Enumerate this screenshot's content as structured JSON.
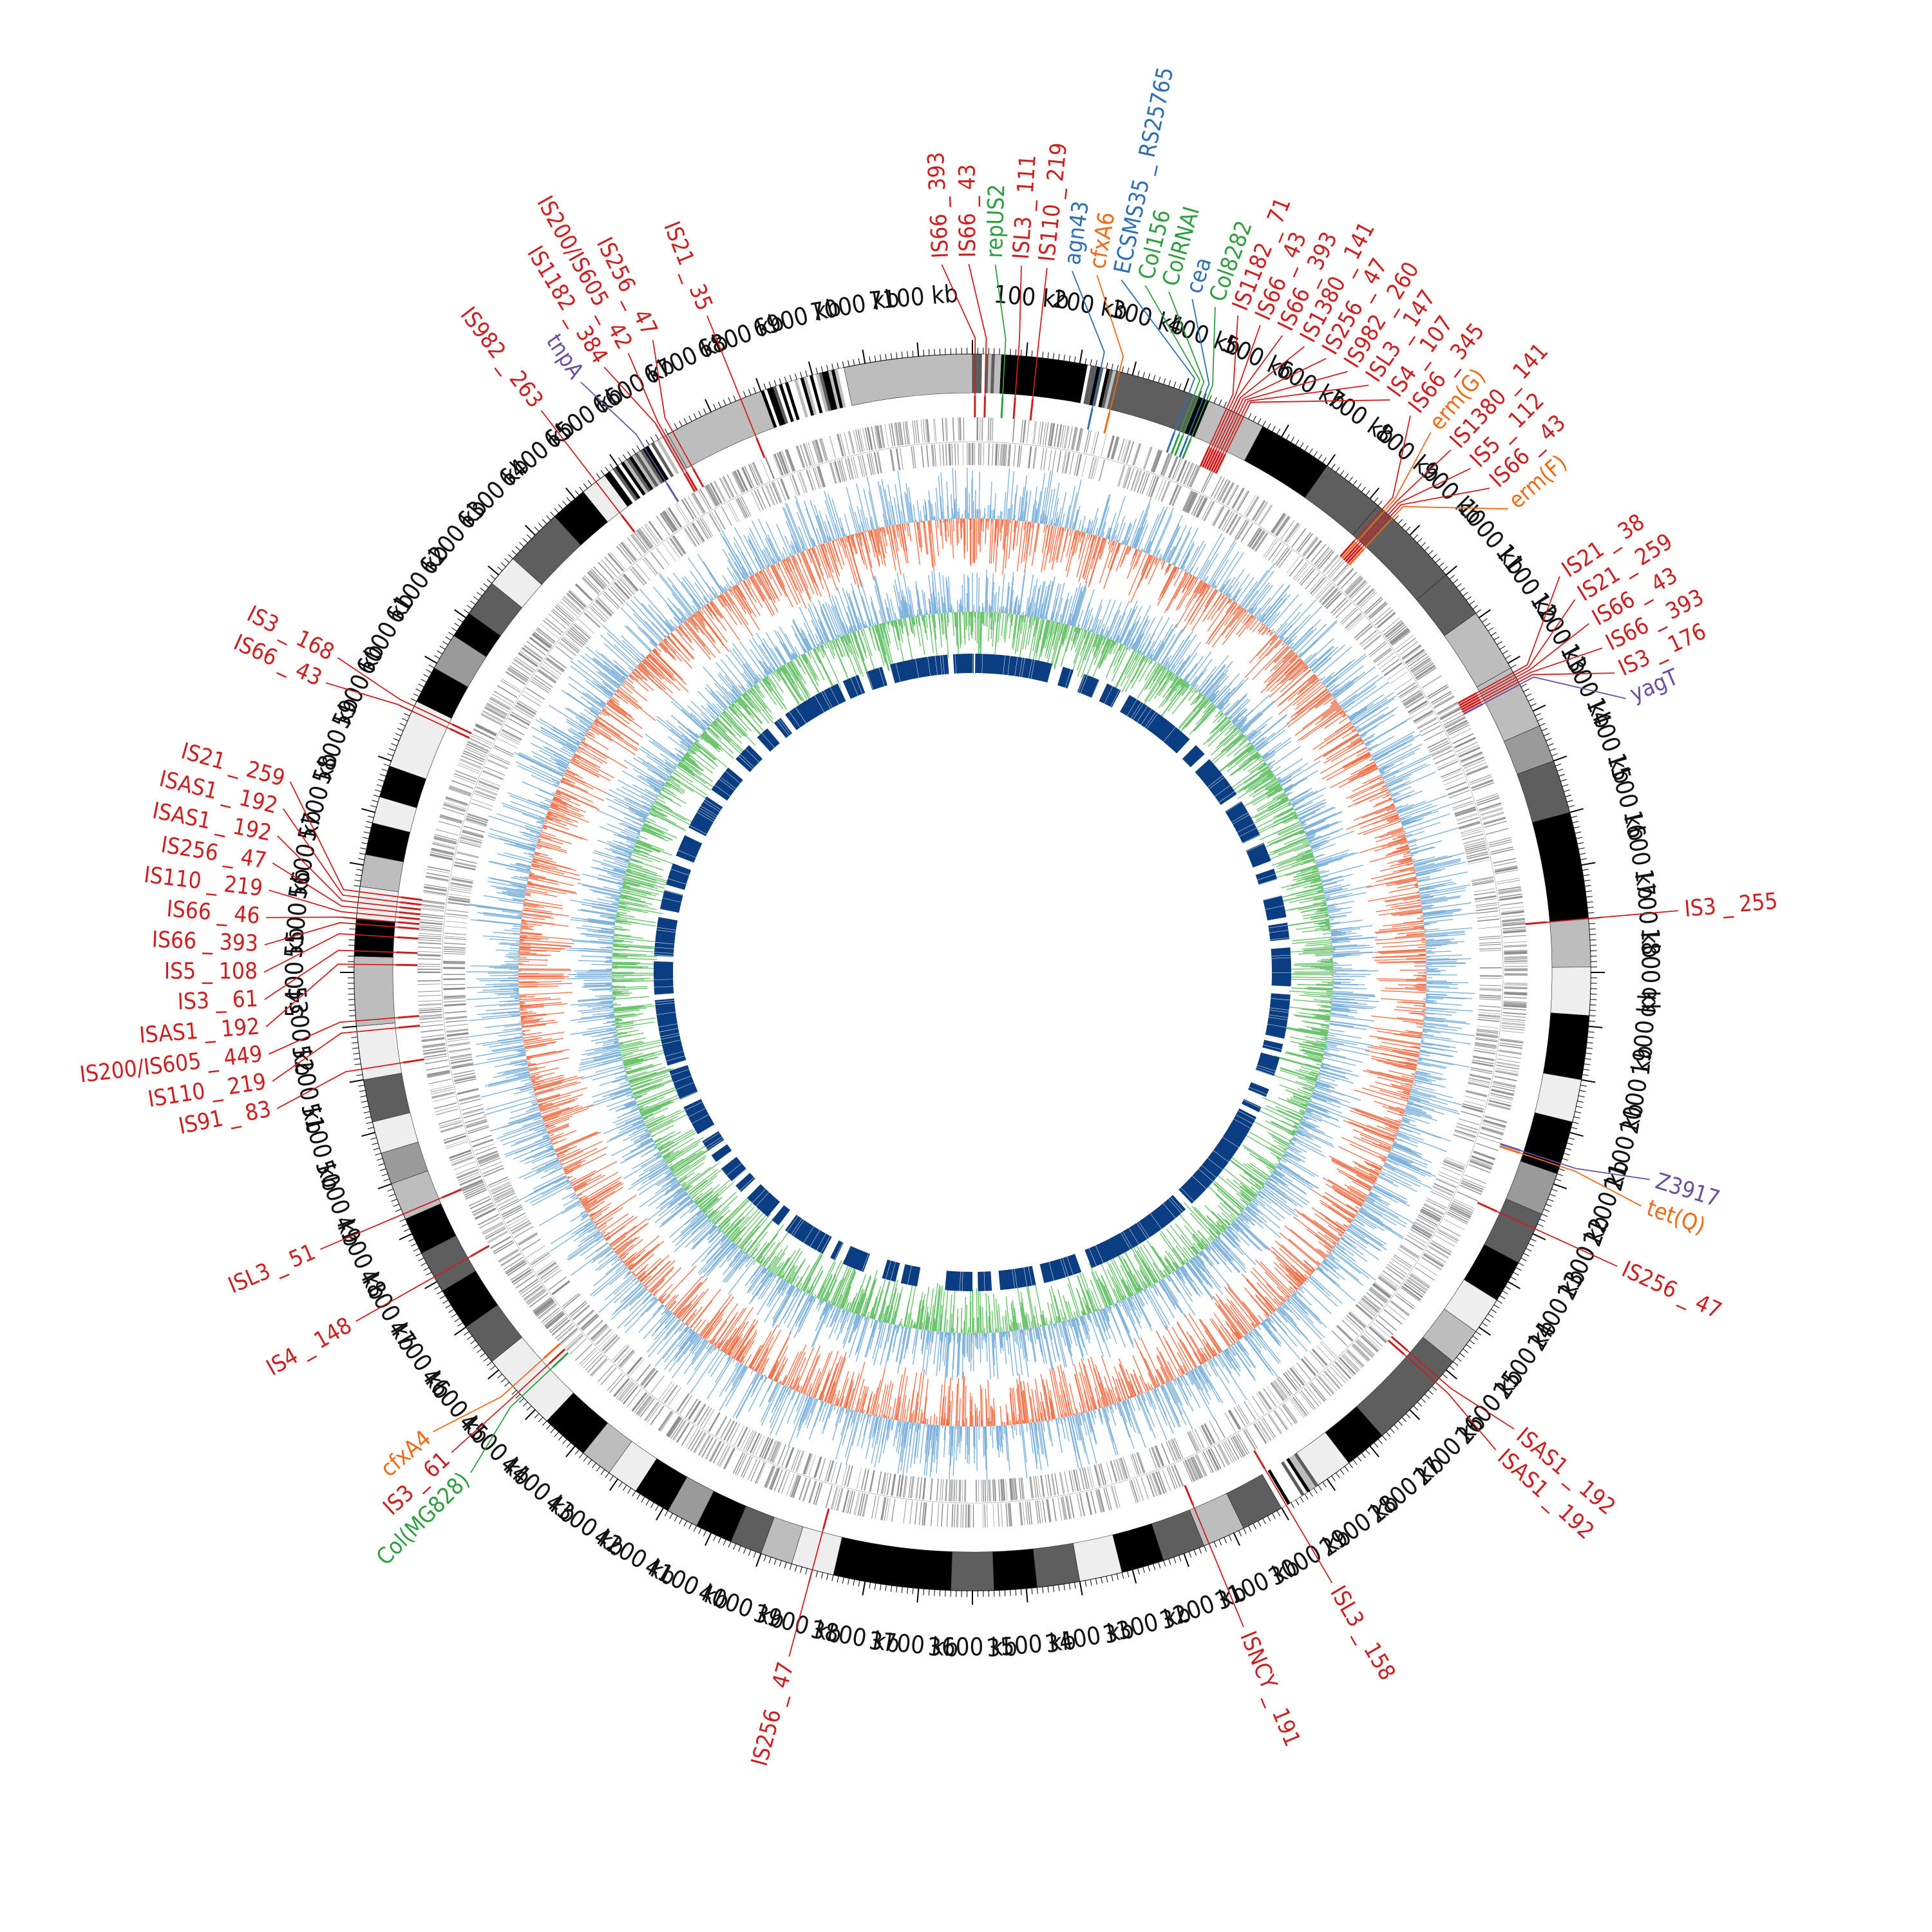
{
  "genome": {
    "length_kb": 7200,
    "major_tick_step_kb": 100,
    "minor_tick_step_kb": 10,
    "tick_unit": "kb"
  },
  "colors": {
    "ring_black": "#000000",
    "ring_dark": "#5e5e5e",
    "ring_mid": "#9a9a9a",
    "ring_light": "#bdbdbd",
    "ring_pale": "#eeeeee",
    "gene_gray": "#8f8f8f",
    "gc_high": "#f0754f",
    "gc_low": "#7fb3dc",
    "skew_pos": "#6cc46e",
    "skew_neg": "#7fb3dc",
    "homology_block": "#0b3d82",
    "is_element": "#cc1f1f",
    "resistance_gene": "#ef6a12",
    "plasmid_replicon": "#2e9f3f",
    "virulence_gene": "#2d6fb3",
    "other_gene": "#6a4fa0"
  },
  "contigs": [
    {
      "start": 0,
      "end": 18,
      "shade": "dark"
    },
    {
      "start": 18,
      "end": 60,
      "shade": "mixed"
    },
    {
      "start": 60,
      "end": 120,
      "shade": "black"
    },
    {
      "start": 120,
      "end": 215,
      "shade": "black"
    },
    {
      "start": 215,
      "end": 275,
      "shade": "mixed"
    },
    {
      "start": 275,
      "end": 430,
      "shade": "dark"
    },
    {
      "start": 430,
      "end": 450,
      "shade": "mixed"
    },
    {
      "start": 450,
      "end": 560,
      "shade": "light"
    },
    {
      "start": 560,
      "end": 700,
      "shade": "black"
    },
    {
      "start": 700,
      "end": 820,
      "shade": "dark"
    },
    {
      "start": 820,
      "end": 1000,
      "shade": "dark"
    },
    {
      "start": 1000,
      "end": 1090,
      "shade": "dark"
    },
    {
      "start": 1090,
      "end": 1210,
      "shade": "light"
    },
    {
      "start": 1210,
      "end": 1330,
      "shade": "light"
    },
    {
      "start": 1330,
      "end": 1400,
      "shade": "mid"
    },
    {
      "start": 1400,
      "end": 1500,
      "shade": "dark"
    },
    {
      "start": 1500,
      "end": 1700,
      "shade": "black"
    },
    {
      "start": 1700,
      "end": 1790,
      "shade": "light"
    },
    {
      "start": 1790,
      "end": 1880,
      "shade": "pale"
    },
    {
      "start": 1880,
      "end": 2000,
      "shade": "black"
    },
    {
      "start": 2000,
      "end": 2080,
      "shade": "pale"
    },
    {
      "start": 2080,
      "end": 2180,
      "shade": "black"
    },
    {
      "start": 2180,
      "end": 2260,
      "shade": "mid"
    },
    {
      "start": 2260,
      "end": 2360,
      "shade": "dark"
    },
    {
      "start": 2360,
      "end": 2440,
      "shade": "black"
    },
    {
      "start": 2440,
      "end": 2510,
      "shade": "pale"
    },
    {
      "start": 2510,
      "end": 2580,
      "shade": "light"
    },
    {
      "start": 2580,
      "end": 2770,
      "shade": "dark"
    },
    {
      "start": 2770,
      "end": 2850,
      "shade": "black"
    },
    {
      "start": 2850,
      "end": 2920,
      "shade": "pale"
    },
    {
      "start": 2920,
      "end": 3000,
      "shade": "mixed"
    },
    {
      "start": 3000,
      "end": 3080,
      "shade": "dark"
    },
    {
      "start": 3080,
      "end": 3160,
      "shade": "light"
    },
    {
      "start": 3160,
      "end": 3240,
      "shade": "dark"
    },
    {
      "start": 3240,
      "end": 3320,
      "shade": "black"
    },
    {
      "start": 3320,
      "end": 3400,
      "shade": "pale"
    },
    {
      "start": 3400,
      "end": 3480,
      "shade": "dark"
    },
    {
      "start": 3480,
      "end": 3560,
      "shade": "black"
    },
    {
      "start": 3560,
      "end": 3640,
      "shade": "dark"
    },
    {
      "start": 3640,
      "end": 3860,
      "shade": "black"
    },
    {
      "start": 3860,
      "end": 3940,
      "shade": "pale"
    },
    {
      "start": 3940,
      "end": 4000,
      "shade": "light"
    },
    {
      "start": 4000,
      "end": 4060,
      "shade": "dark"
    },
    {
      "start": 4060,
      "end": 4130,
      "shade": "black"
    },
    {
      "start": 4130,
      "end": 4190,
      "shade": "mid"
    },
    {
      "start": 4190,
      "end": 4260,
      "shade": "black"
    },
    {
      "start": 4260,
      "end": 4320,
      "shade": "pale"
    },
    {
      "start": 4320,
      "end": 4380,
      "shade": "light"
    },
    {
      "start": 4380,
      "end": 4470,
      "shade": "black"
    },
    {
      "start": 4470,
      "end": 4620,
      "shade": "pale"
    },
    {
      "start": 4620,
      "end": 4700,
      "shade": "dark"
    },
    {
      "start": 4700,
      "end": 4780,
      "shade": "black"
    },
    {
      "start": 4780,
      "end": 4860,
      "shade": "dark"
    },
    {
      "start": 4860,
      "end": 4930,
      "shade": "black"
    },
    {
      "start": 4930,
      "end": 5000,
      "shade": "light"
    },
    {
      "start": 5000,
      "end": 5060,
      "shade": "mid"
    },
    {
      "start": 5060,
      "end": 5120,
      "shade": "pale"
    },
    {
      "start": 5120,
      "end": 5200,
      "shade": "dark"
    },
    {
      "start": 5200,
      "end": 5300,
      "shade": "pale"
    },
    {
      "start": 5300,
      "end": 5430,
      "shade": "light"
    },
    {
      "start": 5430,
      "end": 5500,
      "shade": "black"
    },
    {
      "start": 5500,
      "end": 5560,
      "shade": "pale"
    },
    {
      "start": 5560,
      "end": 5620,
      "shade": "light"
    },
    {
      "start": 5620,
      "end": 5680,
      "shade": "black"
    },
    {
      "start": 5680,
      "end": 5730,
      "shade": "pale"
    },
    {
      "start": 5730,
      "end": 5790,
      "shade": "black"
    },
    {
      "start": 5790,
      "end": 5920,
      "shade": "pale"
    },
    {
      "start": 5920,
      "end": 5990,
      "shade": "black"
    },
    {
      "start": 5990,
      "end": 6060,
      "shade": "mid"
    },
    {
      "start": 6060,
      "end": 6110,
      "shade": "black"
    },
    {
      "start": 6110,
      "end": 6180,
      "shade": "dark"
    },
    {
      "start": 6180,
      "end": 6240,
      "shade": "pale"
    },
    {
      "start": 6240,
      "end": 6350,
      "shade": "dark"
    },
    {
      "start": 6350,
      "end": 6420,
      "shade": "black"
    },
    {
      "start": 6420,
      "end": 6470,
      "shade": "pale"
    },
    {
      "start": 6470,
      "end": 6520,
      "shade": "mixed"
    },
    {
      "start": 6520,
      "end": 6610,
      "shade": "mixed"
    },
    {
      "start": 6610,
      "end": 6800,
      "shade": "light"
    },
    {
      "start": 6800,
      "end": 6960,
      "shade": "mixed"
    },
    {
      "start": 6960,
      "end": 7200,
      "shade": "light"
    }
  ],
  "homology_blocks": [
    [
      6480,
      6700
    ],
    [
      6720,
      6780
    ],
    [
      6810,
      6870
    ],
    [
      6900,
      7110
    ],
    [
      7130,
      7200
    ],
    [
      0,
      5
    ],
    [
      10,
      290
    ],
    [
      330,
      370
    ],
    [
      410,
      470
    ],
    [
      500,
      555
    ],
    [
      590,
      860
    ],
    [
      890,
      935
    ],
    [
      960,
      1120
    ],
    [
      1150,
      1290
    ],
    [
      1320,
      1390
    ],
    [
      1420,
      1460
    ],
    [
      1520,
      1600
    ],
    [
      1620,
      1680
    ],
    [
      1710,
      1850
    ],
    [
      1880,
      2040
    ],
    [
      2060,
      2090
    ],
    [
      2110,
      2180
    ],
    [
      2230,
      2260
    ],
    [
      2300,
      2320
    ],
    [
      2340,
      2730
    ],
    [
      2760,
      3160
    ],
    [
      3200,
      3340
    ],
    [
      3370,
      3500
    ],
    [
      3530,
      3580
    ],
    [
      3600,
      3700
    ],
    [
      3800,
      3860
    ],
    [
      3880,
      3930
    ],
    [
      4000,
      4080
    ],
    [
      4110,
      4130
    ],
    [
      4160,
      4320
    ],
    [
      4350,
      4380
    ],
    [
      4400,
      4500
    ],
    [
      4530,
      4560
    ],
    [
      4580,
      4640
    ],
    [
      4670,
      4700
    ],
    [
      4720,
      4760
    ],
    [
      4790,
      4900
    ],
    [
      4930,
      5040
    ],
    [
      5060,
      5300
    ],
    [
      5320,
      5440
    ],
    [
      5460,
      5600
    ],
    [
      5630,
      5700
    ],
    [
      5720,
      5800
    ],
    [
      5830,
      5910
    ],
    [
      5940,
      6070
    ],
    [
      6100,
      6200
    ],
    [
      6240,
      6310
    ],
    [
      6350,
      6400
    ],
    [
      6430,
      6460
    ]
  ],
  "features": [
    {
      "label": "IS66 _ 393",
      "pos": 5,
      "type": "is"
    },
    {
      "label": "IS66 _ 43",
      "pos": 25,
      "type": "is"
    },
    {
      "label": "repUS2",
      "pos": 60,
      "type": "plasmid"
    },
    {
      "label": "ISL3 _ 111",
      "pos": 85,
      "type": "is"
    },
    {
      "label": "IS110 _ 219",
      "pos": 120,
      "type": "is"
    },
    {
      "label": "agn43",
      "pos": 240,
      "type": "virulence"
    },
    {
      "label": "cfxA6",
      "pos": 275,
      "type": "resistance"
    },
    {
      "label": "ECSMS35 _ RS25765",
      "pos": 410,
      "type": "virulence"
    },
    {
      "label": "Col156",
      "pos": 420,
      "type": "plasmid"
    },
    {
      "label": "ColRNAI",
      "pos": 428,
      "type": "plasmid"
    },
    {
      "label": "cea",
      "pos": 438,
      "type": "virulence"
    },
    {
      "label": "Col8282",
      "pos": 445,
      "type": "plasmid"
    },
    {
      "label": "IS1182 _ 71",
      "pos": 485,
      "type": "is"
    },
    {
      "label": "IS66 _ 43",
      "pos": 490,
      "type": "is"
    },
    {
      "label": "IS66 _ 393",
      "pos": 495,
      "type": "is"
    },
    {
      "label": "IS1380 _ 141",
      "pos": 500,
      "type": "is"
    },
    {
      "label": "IS256 _ 47",
      "pos": 505,
      "type": "is"
    },
    {
      "label": "IS982 _ 260",
      "pos": 510,
      "type": "is"
    },
    {
      "label": "ISL3 _ 147",
      "pos": 515,
      "type": "is"
    },
    {
      "label": "IS4 _ 107",
      "pos": 520,
      "type": "is"
    },
    {
      "label": "IS66 _ 345",
      "pos": 830,
      "type": "is"
    },
    {
      "label": "erm(G)",
      "pos": 835,
      "type": "resistance"
    },
    {
      "label": "IS1380 _ 141",
      "pos": 840,
      "type": "is"
    },
    {
      "label": "IS5 _ 112",
      "pos": 845,
      "type": "is"
    },
    {
      "label": "IS66 _ 43",
      "pos": 850,
      "type": "is"
    },
    {
      "label": "erm(F)",
      "pos": 855,
      "type": "resistance"
    },
    {
      "label": "IS21 _ 38",
      "pos": 1220,
      "type": "is"
    },
    {
      "label": "IS21 _ 259",
      "pos": 1225,
      "type": "is"
    },
    {
      "label": "IS66 _ 43",
      "pos": 1230,
      "type": "is"
    },
    {
      "label": "IS66 _ 393",
      "pos": 1235,
      "type": "is"
    },
    {
      "label": "IS3 _ 176",
      "pos": 1240,
      "type": "is"
    },
    {
      "label": "yagT",
      "pos": 1245,
      "type": "other"
    },
    {
      "label": "IS3 _ 255",
      "pos": 1700,
      "type": "is"
    },
    {
      "label": "Z3917",
      "pos": 2160,
      "type": "other"
    },
    {
      "label": "tet(Q)",
      "pos": 2165,
      "type": "resistance"
    },
    {
      "label": "IS256 _ 47",
      "pos": 2290,
      "type": "is"
    },
    {
      "label": "ISAS1 _ 192",
      "pos": 2620,
      "type": "is"
    },
    {
      "label": "ISAS1 _ 192",
      "pos": 2630,
      "type": "is"
    },
    {
      "label": "ISL3 _ 158",
      "pos": 2990,
      "type": "is"
    },
    {
      "label": "ISNCY _ 191",
      "pos": 3150,
      "type": "is"
    },
    {
      "label": "IS256 _ 47",
      "pos": 3900,
      "type": "is"
    },
    {
      "label": "Col(MG828)",
      "pos": 4535,
      "type": "plasmid"
    },
    {
      "label": "IS3 _ 61",
      "pos": 4545,
      "type": "is"
    },
    {
      "label": "cfxA4",
      "pos": 4560,
      "type": "resistance"
    },
    {
      "label": "IS4 _ 148",
      "pos": 4810,
      "type": "is"
    },
    {
      "label": "ISL3 _ 51",
      "pos": 4940,
      "type": "is"
    },
    {
      "label": "IS91 _ 83",
      "pos": 5220,
      "type": "is"
    },
    {
      "label": "IS110 _ 219",
      "pos": 5290,
      "type": "is"
    },
    {
      "label": "IS200/IS605 _ 449",
      "pos": 5310,
      "type": "is"
    },
    {
      "label": "ISAS1 _ 192",
      "pos": 5415,
      "type": "is"
    },
    {
      "label": "IS3 _ 61",
      "pos": 5440,
      "type": "is"
    },
    {
      "label": "IS5 _ 108",
      "pos": 5470,
      "type": "is"
    },
    {
      "label": "IS66 _ 393",
      "pos": 5490,
      "type": "is"
    },
    {
      "label": "IS66 _ 46",
      "pos": 5500,
      "type": "is"
    },
    {
      "label": "IS110 _ 219",
      "pos": 5510,
      "type": "is"
    },
    {
      "label": "IS256 _ 47",
      "pos": 5520,
      "type": "is"
    },
    {
      "label": "ISAS1 _ 192",
      "pos": 5530,
      "type": "is"
    },
    {
      "label": "ISAS1 _ 192",
      "pos": 5540,
      "type": "is"
    },
    {
      "label": "IS21 _ 259",
      "pos": 5550,
      "type": "is"
    },
    {
      "label": "IS66 _ 43",
      "pos": 5900,
      "type": "is"
    },
    {
      "label": "IS3 _ 168",
      "pos": 5910,
      "type": "is"
    },
    {
      "label": "IS982 _ 263",
      "pos": 6450,
      "type": "is"
    },
    {
      "label": "tnpA",
      "pos": 6560,
      "type": "other"
    },
    {
      "label": "IS1182 _ 384",
      "pos": 6600,
      "type": "is"
    },
    {
      "label": "IS200/IS605 _ 42",
      "pos": 6605,
      "type": "is"
    },
    {
      "label": "IS256 _ 47",
      "pos": 6620,
      "type": "is"
    },
    {
      "label": "IS21 _ 35",
      "pos": 6760,
      "type": "is"
    }
  ]
}
